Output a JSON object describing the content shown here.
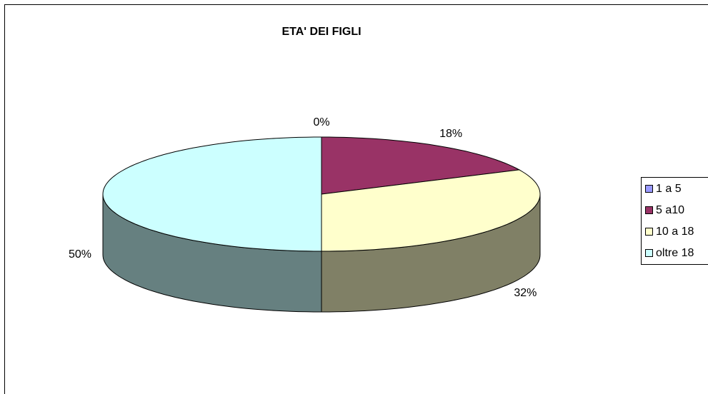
{
  "chart_data": {
    "type": "pie3d",
    "title": "ETA' DEI FIGLI",
    "categories": [
      "1 a 5",
      "5 a10",
      "10 a 18",
      "oltre 18"
    ],
    "values": [
      0,
      18,
      32,
      50
    ],
    "value_labels": [
      "0%",
      "18%",
      "32%",
      "50%"
    ],
    "colors": [
      "#9999ff",
      "#993366",
      "#ffffcc",
      "#ccffff"
    ],
    "legend": "right"
  }
}
